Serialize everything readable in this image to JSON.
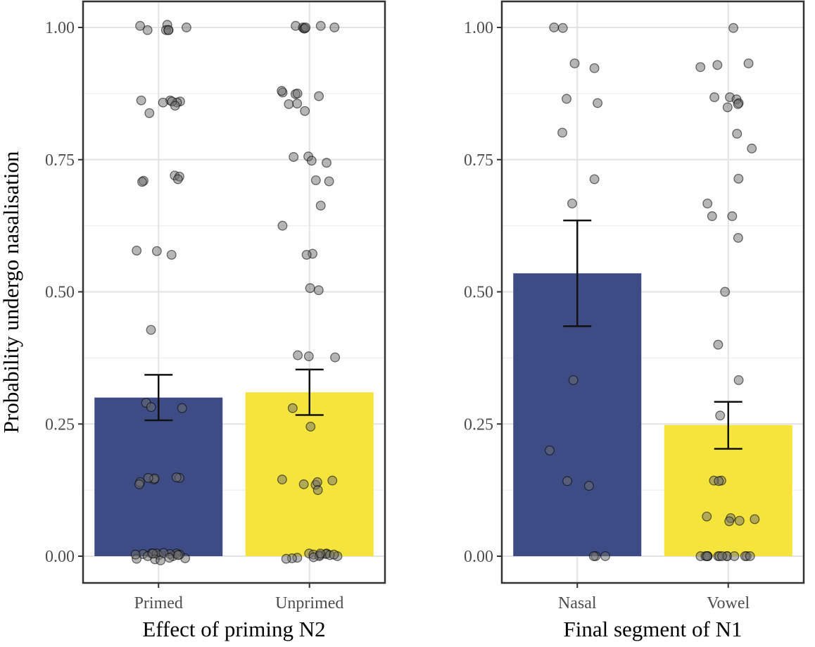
{
  "colors": {
    "primary_bar": "#3e4c85",
    "secondary_bar": "#f5e43c",
    "point_fill": "#6e6e6e",
    "panel_border": "#333333",
    "grid_major": "#e3e3e3",
    "grid_minor": "#efefef",
    "error_bar": "#111111"
  },
  "y_axis": {
    "label": "Probability undergo nasalisation",
    "ylim": [
      0,
      1.05
    ],
    "ticks": [
      0.0,
      0.25,
      0.5,
      0.75,
      1.0
    ],
    "tick_labels": [
      "0.00",
      "0.25",
      "0.50",
      "0.75",
      "1.00"
    ]
  },
  "chart_data": [
    {
      "type": "bar",
      "xlabel": "Effect of priming N2",
      "ylabel": "Probability undergo nasalisation",
      "categories": [
        "Primed",
        "Unprimed"
      ],
      "values": [
        0.3,
        0.31
      ],
      "error_low": [
        0.257,
        0.267
      ],
      "error_high": [
        0.343,
        0.353
      ],
      "ylim": [
        0,
        1.05
      ],
      "grid": true,
      "points": [
        {
          "category": "Primed",
          "y": [
            1.005,
            0.995,
            0.995,
            1.0,
            0.995,
            0.995,
            1.003,
            0.86,
            0.862,
            0.858,
            0.86,
            0.838,
            0.852,
            0.862,
            0.858,
            0.71,
            0.708,
            0.72,
            0.718,
            0.713,
            0.578,
            0.577,
            0.57,
            0.428,
            0.29,
            0.282,
            0.28,
            0.148,
            0.145,
            0.147,
            0.149,
            0.14,
            0.136,
            0.148,
            0.005,
            0.002,
            -0.004,
            0.005,
            0.0,
            0.004,
            -0.006,
            0.003,
            0.005,
            0.0,
            -0.008,
            0.002,
            0.004,
            -0.005,
            0.006,
            0.003,
            -0.003,
            0.005
          ]
        },
        {
          "category": "Unprimed",
          "y": [
            1.003,
            1.003,
            1.0,
            0.998,
            0.998,
            1.0,
            1.0,
            0.877,
            0.874,
            0.855,
            0.87,
            0.88,
            0.875,
            0.856,
            0.842,
            0.755,
            0.744,
            0.756,
            0.748,
            0.709,
            0.711,
            0.663,
            0.625,
            0.572,
            0.57,
            0.507,
            0.503,
            0.38,
            0.378,
            0.376,
            0.28,
            0.245,
            0.143,
            0.135,
            0.145,
            0.14,
            0.125,
            0.136,
            0.005,
            0.002,
            -0.003,
            0.004,
            0.0,
            0.005,
            -0.004,
            0.003,
            0.0,
            0.002,
            -0.002,
            0.005,
            -0.005,
            0.003
          ]
        }
      ]
    },
    {
      "type": "bar",
      "xlabel": "Final segment of N1",
      "ylabel": "",
      "categories": [
        "Nasal",
        "Vowel"
      ],
      "values": [
        0.535,
        0.248
      ],
      "error_low": [
        0.435,
        0.203
      ],
      "error_high": [
        0.635,
        0.292
      ],
      "ylim": [
        0,
        1.05
      ],
      "grid": true,
      "points": [
        {
          "category": "Nasal",
          "y": [
            1.0,
            0.999,
            0.932,
            0.923,
            0.865,
            0.857,
            0.801,
            0.713,
            0.667,
            0.333,
            0.2,
            0.142,
            0.133,
            0.0,
            0.0,
            0.0
          ]
        },
        {
          "category": "Vowel",
          "y": [
            0.999,
            0.932,
            0.929,
            0.925,
            0.868,
            0.868,
            0.864,
            0.857,
            0.855,
            0.849,
            0.799,
            0.771,
            0.714,
            0.667,
            0.643,
            0.643,
            0.602,
            0.5,
            0.4,
            0.333,
            0.266,
            0.143,
            0.143,
            0.142,
            0.075,
            0.072,
            0.07,
            0.067,
            0.066,
            0.0,
            0.0,
            0.0,
            0.0,
            0.0,
            0.0,
            0.0,
            0.0,
            0.0,
            0.0,
            0.0,
            0.0,
            0.0,
            0.0
          ]
        }
      ]
    }
  ]
}
